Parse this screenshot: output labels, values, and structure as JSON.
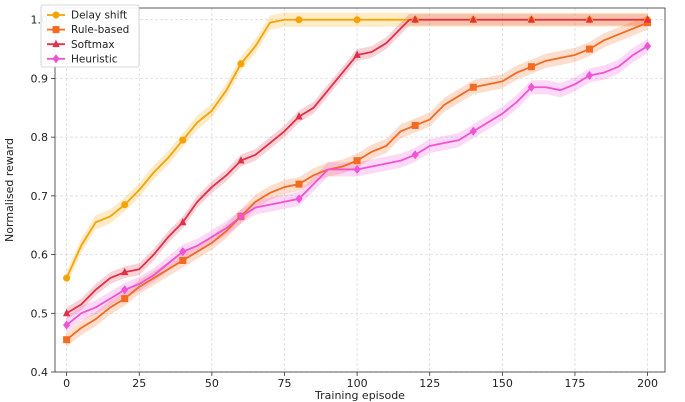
{
  "chart_data": {
    "type": "line",
    "title": "",
    "xlabel": "Training episode",
    "ylabel": "Normalised reward",
    "xlim": [
      -4,
      206
    ],
    "ylim": [
      0.4,
      1.02
    ],
    "x_ticks": [
      0,
      25,
      50,
      75,
      100,
      125,
      150,
      175,
      200
    ],
    "y_ticks": [
      0.4,
      0.5,
      0.6,
      0.7,
      0.8,
      0.9,
      1.0
    ],
    "y_tick_labels": [
      "0.4",
      "0.5",
      "0.6",
      "0.7",
      "0.8",
      "0.9",
      "1.0"
    ],
    "grid": true,
    "legend_position": "top-left",
    "series": [
      {
        "name": "Delay shift",
        "color": "#f5a300",
        "marker": "circle",
        "band_width": 0.012,
        "x": [
          0,
          5,
          10,
          15,
          20,
          25,
          30,
          35,
          40,
          45,
          50,
          55,
          60,
          65,
          70,
          75,
          80,
          90,
          100,
          110,
          120,
          130,
          140,
          150,
          160,
          170,
          180,
          190,
          200
        ],
        "y": [
          0.56,
          0.615,
          0.655,
          0.665,
          0.685,
          0.71,
          0.74,
          0.765,
          0.795,
          0.825,
          0.845,
          0.88,
          0.925,
          0.955,
          0.995,
          1.0,
          1.0,
          1.0,
          1.0,
          1.0,
          1.0,
          1.0,
          1.0,
          1.0,
          1.0,
          1.0,
          1.0,
          1.0,
          1.0
        ],
        "marker_x": [
          0,
          20,
          40,
          60,
          80,
          100,
          120,
          140,
          160,
          180,
          200
        ]
      },
      {
        "name": "Rule-based",
        "color": "#f26b21",
        "marker": "square",
        "band_width": 0.012,
        "x": [
          0,
          5,
          10,
          15,
          20,
          25,
          30,
          35,
          40,
          45,
          50,
          55,
          60,
          65,
          70,
          75,
          80,
          85,
          90,
          95,
          100,
          105,
          110,
          115,
          120,
          125,
          130,
          135,
          140,
          145,
          150,
          155,
          160,
          165,
          170,
          175,
          180,
          185,
          190,
          195,
          200
        ],
        "y": [
          0.455,
          0.475,
          0.49,
          0.51,
          0.525,
          0.545,
          0.56,
          0.575,
          0.59,
          0.605,
          0.62,
          0.64,
          0.665,
          0.69,
          0.705,
          0.715,
          0.72,
          0.735,
          0.745,
          0.75,
          0.76,
          0.775,
          0.785,
          0.81,
          0.82,
          0.83,
          0.855,
          0.87,
          0.885,
          0.89,
          0.895,
          0.91,
          0.92,
          0.93,
          0.935,
          0.94,
          0.95,
          0.965,
          0.975,
          0.985,
          0.995
        ],
        "marker_x": [
          0,
          20,
          40,
          60,
          80,
          100,
          120,
          140,
          160,
          180,
          200
        ]
      },
      {
        "name": "Softmax",
        "color": "#e0304a",
        "marker": "triangle",
        "band_width": 0.01,
        "x": [
          0,
          5,
          10,
          15,
          20,
          25,
          30,
          35,
          40,
          45,
          50,
          55,
          60,
          65,
          70,
          75,
          80,
          85,
          90,
          95,
          100,
          105,
          110,
          115,
          118,
          120,
          140,
          160,
          180,
          200
        ],
        "y": [
          0.5,
          0.515,
          0.54,
          0.56,
          0.57,
          0.575,
          0.6,
          0.63,
          0.655,
          0.69,
          0.715,
          0.735,
          0.76,
          0.77,
          0.79,
          0.81,
          0.835,
          0.85,
          0.88,
          0.91,
          0.94,
          0.945,
          0.96,
          0.985,
          1.0,
          1.0,
          1.0,
          1.0,
          1.0,
          1.0
        ],
        "marker_x": [
          0,
          20,
          40,
          60,
          80,
          100,
          120,
          140,
          160,
          180,
          200
        ]
      },
      {
        "name": "Heuristic",
        "color": "#f053d6",
        "marker": "diamond",
        "band_width": 0.012,
        "x": [
          0,
          5,
          10,
          15,
          20,
          25,
          30,
          35,
          40,
          45,
          50,
          55,
          60,
          65,
          70,
          75,
          80,
          85,
          90,
          95,
          100,
          105,
          110,
          115,
          120,
          125,
          130,
          135,
          140,
          145,
          150,
          155,
          160,
          165,
          170,
          175,
          180,
          185,
          190,
          195,
          200
        ],
        "y": [
          0.48,
          0.5,
          0.51,
          0.525,
          0.54,
          0.55,
          0.565,
          0.585,
          0.605,
          0.615,
          0.63,
          0.645,
          0.665,
          0.68,
          0.685,
          0.69,
          0.695,
          0.72,
          0.745,
          0.745,
          0.745,
          0.75,
          0.755,
          0.76,
          0.77,
          0.785,
          0.79,
          0.795,
          0.81,
          0.825,
          0.84,
          0.86,
          0.885,
          0.885,
          0.88,
          0.89,
          0.905,
          0.91,
          0.92,
          0.94,
          0.955
        ],
        "marker_x": [
          0,
          20,
          40,
          60,
          80,
          100,
          120,
          140,
          160,
          180,
          200
        ]
      }
    ]
  }
}
